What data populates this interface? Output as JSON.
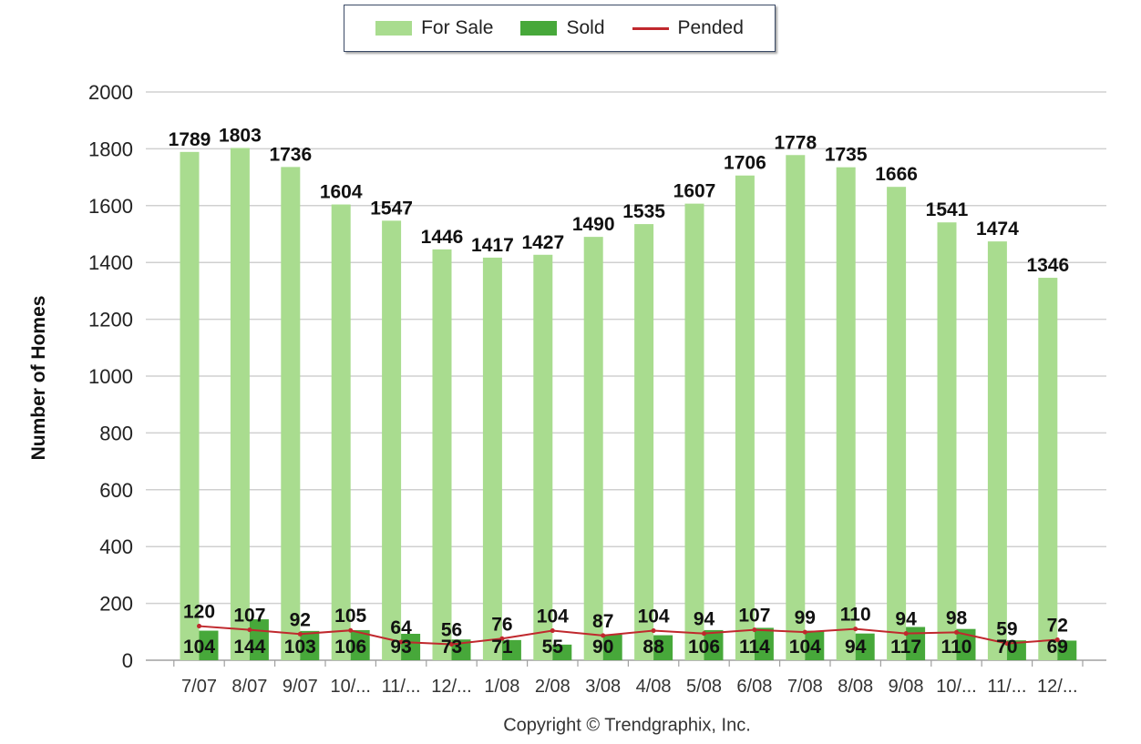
{
  "chart_data": {
    "type": "bar",
    "categories": [
      "7/07",
      "8/07",
      "9/07",
      "10/...",
      "11/...",
      "12/...",
      "1/08",
      "2/08",
      "3/08",
      "4/08",
      "5/08",
      "6/08",
      "7/08",
      "8/08",
      "9/08",
      "10/...",
      "11/...",
      "12/..."
    ],
    "series": [
      {
        "name": "For Sale",
        "type": "bar",
        "color": "#a9dc8f",
        "values": [
          1789,
          1803,
          1736,
          1604,
          1547,
          1446,
          1417,
          1427,
          1490,
          1535,
          1607,
          1706,
          1778,
          1735,
          1666,
          1541,
          1474,
          1346
        ]
      },
      {
        "name": "Sold",
        "type": "bar",
        "color": "#47a83a",
        "values": [
          104,
          144,
          103,
          106,
          93,
          73,
          71,
          55,
          90,
          88,
          106,
          114,
          104,
          94,
          117,
          110,
          70,
          69
        ]
      },
      {
        "name": "Pended",
        "type": "line",
        "color": "#c0282d",
        "values": [
          120,
          107,
          92,
          105,
          64,
          56,
          76,
          104,
          87,
          104,
          94,
          107,
          99,
          110,
          94,
          98,
          59,
          72
        ]
      }
    ],
    "ylabel": "Number of Homes",
    "ylim": [
      0,
      2000
    ],
    "yticks": [
      0,
      200,
      400,
      600,
      800,
      1000,
      1200,
      1400,
      1600,
      1800,
      2000
    ],
    "grid": true,
    "legend_position": "top-center",
    "footer": "Copyright © Trendgraphix, Inc."
  }
}
